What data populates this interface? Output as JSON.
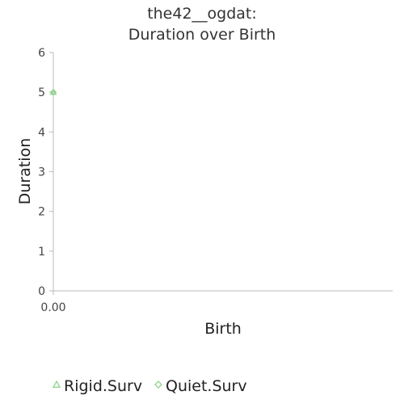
{
  "chart_data": {
    "type": "scatter",
    "title_lines": [
      "the42__ogdat:",
      "Duration over Birth"
    ],
    "xlabel": "Birth",
    "ylabel": "Duration",
    "x_ticks": [
      "0.00"
    ],
    "y_ticks": [
      0,
      1,
      2,
      3,
      4,
      5,
      6
    ],
    "ylim": [
      0,
      6
    ],
    "grid": false,
    "legend_position": "bottom",
    "series": [
      {
        "name": "Rigid.Surv",
        "marker": "triangle",
        "color": "#8fd48a",
        "points": [
          {
            "x": 0,
            "y": 5
          }
        ]
      },
      {
        "name": "Quiet.Surv",
        "marker": "diamond",
        "color": "#8fd48a",
        "points": [
          {
            "x": 0,
            "y": 5
          }
        ]
      }
    ]
  }
}
